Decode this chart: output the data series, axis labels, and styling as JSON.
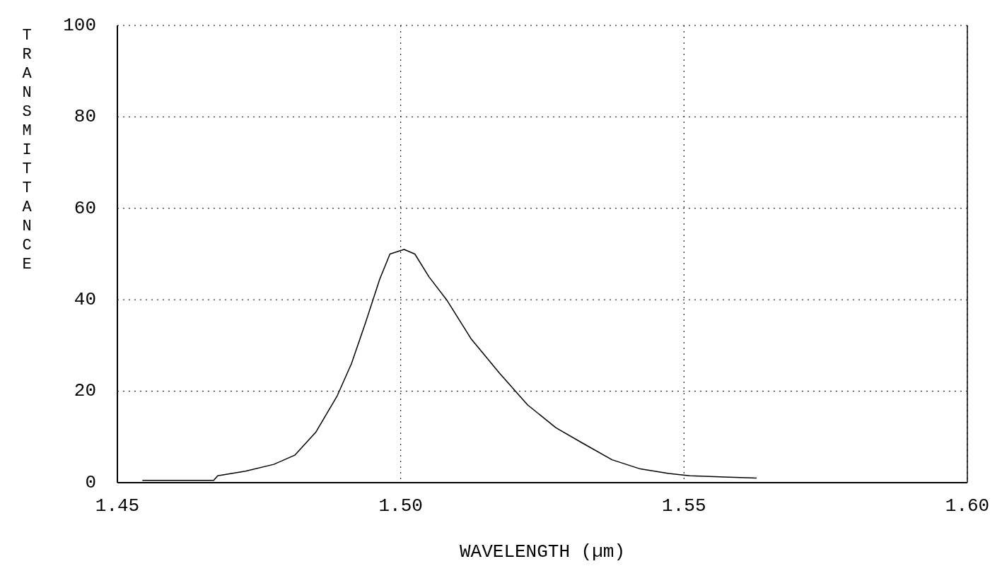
{
  "chart_data": {
    "type": "line",
    "xlabel": "WAVELENGTH (µm)",
    "ylabel": "TRANSMITTANCE",
    "xlim": [
      1.45,
      1.6
    ],
    "xticks": [
      1.45,
      {
        "value": 1.5,
        "label": "1.50"
      },
      1.55,
      {
        "value": 1.6,
        "label": "1.60"
      }
    ],
    "ylim": [
      0,
      100
    ],
    "yticks": [
      0,
      20,
      40,
      60,
      80,
      100
    ],
    "grid": true,
    "series": [
      {
        "color": "#000000",
        "x": [
          1.4544,
          1.467,
          1.4677,
          1.4726,
          1.4776,
          1.4813,
          1.485,
          1.4888,
          1.4913,
          1.4938,
          1.4963,
          1.4981,
          1.5006,
          1.5025,
          1.505,
          1.5081,
          1.5124,
          1.5174,
          1.5224,
          1.5274,
          1.5323,
          1.5373,
          1.5423,
          1.5473,
          1.551,
          1.5628
        ],
        "values": [
          0.5,
          0.5,
          1.5,
          2.5,
          4,
          6,
          11,
          19,
          26,
          35,
          44.5,
          50,
          51,
          50,
          45,
          40,
          31.5,
          24,
          17,
          12,
          8.5,
          5,
          3,
          2,
          1.5,
          1
        ]
      }
    ]
  }
}
